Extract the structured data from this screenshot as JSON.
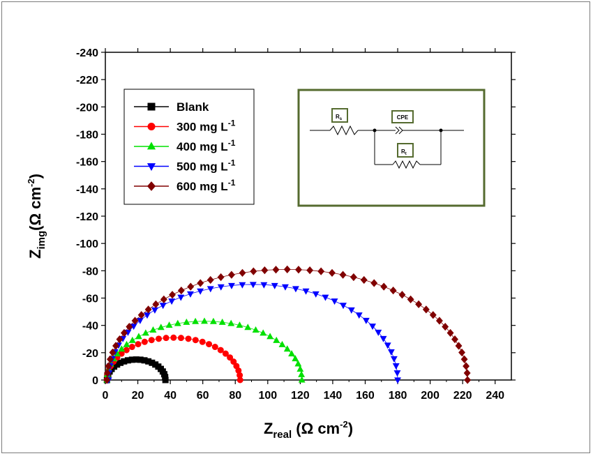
{
  "chart_data": {
    "type": "scatter",
    "xlabel": {
      "main": "Z",
      "sub": "real",
      "unit_pre": " (Ω cm",
      "sup": "-2",
      "unit_post": ")"
    },
    "ylabel": {
      "main": "Z",
      "sub": "img",
      "unit_pre": "(Ω cm",
      "sup": "-2",
      "unit_post": ")"
    },
    "xlim": [
      0,
      250
    ],
    "ylim": [
      0,
      -240
    ],
    "xticks": [
      0,
      20,
      40,
      60,
      80,
      100,
      120,
      140,
      160,
      180,
      200,
      220,
      240
    ],
    "yticks": [
      0,
      -20,
      -40,
      -60,
      -80,
      -100,
      -120,
      -140,
      -160,
      -180,
      -200,
      -220,
      -240
    ],
    "legend_position": "top-left",
    "series": [
      {
        "name": "Blank",
        "unit": "mg L",
        "sup": "",
        "label_main": "Blank",
        "color": "#000000",
        "marker": "square",
        "cx": 19,
        "r": 18,
        "h": 15,
        "n": 22
      },
      {
        "name": "300 mg L-1",
        "label_main": "300 mg L",
        "sup": "-1",
        "color": "#ff0000",
        "marker": "circle",
        "cx": 42,
        "r": 41,
        "h": 31,
        "n": 28
      },
      {
        "name": "400 mg L-1",
        "label_main": "400 mg L",
        "sup": "-1",
        "color": "#00e000",
        "marker": "triangle-up",
        "cx": 61,
        "r": 60,
        "h": 43,
        "n": 34
      },
      {
        "name": "500 mg L-1",
        "label_main": "500 mg L",
        "sup": "-1",
        "color": "#0000ff",
        "marker": "triangle-down",
        "cx": 91,
        "r": 89,
        "h": 70,
        "n": 42
      },
      {
        "name": "600 mg L-1",
        "label_main": "600 mg L",
        "sup": "-1",
        "color": "#800000",
        "marker": "diamond",
        "cx": 112,
        "r": 111,
        "h": 81,
        "n": 50
      }
    ],
    "inset_circuit": {
      "labels": {
        "rs": "R",
        "rs_sub": "s",
        "cpe": "CPE",
        "rt": "R",
        "rt_sub": "t"
      },
      "border_color": "#556b2f"
    }
  }
}
